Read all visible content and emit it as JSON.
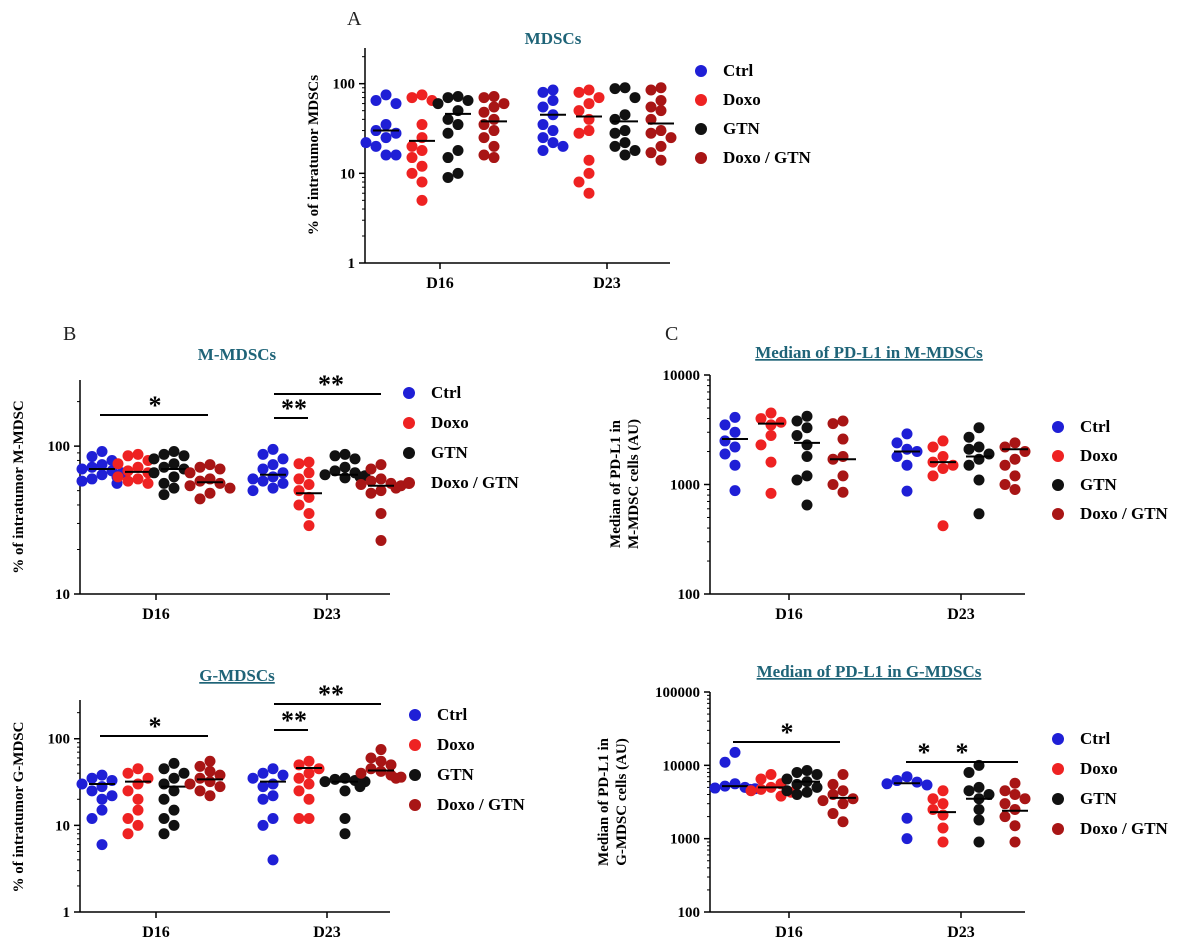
{
  "colors": {
    "Ctrl": "#1f1fd6",
    "Doxo": "#ee2222",
    "GTN": "#111111",
    "Doxo / GTN": "#a81515",
    "title": "#1f6478",
    "axis": "#000000"
  },
  "panel_letters": {
    "A": "A",
    "B": "B",
    "C": "C"
  },
  "chart_data": [
    {
      "id": "A",
      "type": "scatter",
      "title": "MDSCs",
      "title_underline": false,
      "ylabel": "% of intratumor MDSCs",
      "xlabel": "",
      "yscale": "log",
      "ylim": [
        1,
        250
      ],
      "yticks": [
        1,
        10,
        100
      ],
      "ytick_labels": [
        "1",
        "10",
        "100"
      ],
      "categories": [
        "D16",
        "D23"
      ],
      "legend": [
        "Ctrl",
        "Doxo",
        "GTN",
        "Doxo / GTN"
      ],
      "legend_position": "right",
      "series": [
        {
          "name": "Ctrl",
          "values": [
            [
              75,
              65,
              60,
              35,
              30,
              28,
              25,
              20,
              16,
              16,
              22
            ],
            [
              85,
              80,
              65,
              55,
              45,
              35,
              30,
              25,
              22,
              18,
              20
            ]
          ],
          "means": [
            30,
            45
          ]
        },
        {
          "name": "Doxo",
          "values": [
            [
              75,
              70,
              65,
              35,
              25,
              20,
              18,
              15,
              12,
              10,
              8,
              5
            ],
            [
              85,
              80,
              70,
              60,
              50,
              40,
              30,
              28,
              14,
              10,
              8,
              6
            ]
          ],
          "means": [
            23,
            43
          ]
        },
        {
          "name": "GTN",
          "values": [
            [
              72,
              70,
              65,
              60,
              50,
              40,
              35,
              28,
              18,
              15,
              10,
              9
            ],
            [
              90,
              88,
              70,
              45,
              40,
              30,
              28,
              22,
              20,
              18,
              16
            ]
          ],
          "means": [
            46,
            38
          ]
        },
        {
          "name": "Doxo / GTN",
          "values": [
            [
              72,
              70,
              60,
              55,
              48,
              40,
              35,
              30,
              25,
              20,
              16,
              15
            ],
            [
              90,
              85,
              65,
              55,
              50,
              40,
              30,
              28,
              25,
              20,
              17,
              14
            ]
          ],
          "means": [
            38,
            36
          ]
        }
      ],
      "significance": []
    },
    {
      "id": "B1",
      "type": "scatter",
      "title": "M-MDSCs",
      "title_underline": false,
      "ylabel": "% of intratumor M-MDSC",
      "xlabel": "",
      "yscale": "log",
      "ylim": [
        10,
        280
      ],
      "yticks": [
        10,
        100
      ],
      "ytick_labels": [
        "10",
        "100"
      ],
      "categories": [
        "D16",
        "D23"
      ],
      "legend": [
        "Ctrl",
        "Doxo",
        "GTN",
        "Doxo / GTN"
      ],
      "legend_position": "right",
      "series": [
        {
          "name": "Ctrl",
          "values": [
            [
              92,
              85,
              80,
              75,
              72,
              70,
              68,
              66,
              64,
              62,
              60,
              58,
              56
            ],
            [
              95,
              88,
              82,
              75,
              70,
              66,
              62,
              60,
              58,
              56,
              52,
              50
            ]
          ],
          "means": [
            70,
            64
          ]
        },
        {
          "name": "Doxo",
          "values": [
            [
              88,
              86,
              80,
              76,
              72,
              68,
              66,
              62,
              60,
              58,
              56
            ],
            [
              78,
              76,
              66,
              60,
              55,
              50,
              45,
              40,
              35,
              29
            ]
          ],
          "means": [
            67,
            48
          ]
        },
        {
          "name": "GTN",
          "values": [
            [
              92,
              88,
              86,
              82,
              76,
              72,
              70,
              66,
              62,
              56,
              52,
              47
            ],
            [
              88,
              86,
              82,
              72,
              68,
              66,
              64,
              63,
              62,
              61
            ]
          ],
          "means": [
            70,
            64
          ]
        },
        {
          "name": "Doxo / GTN",
          "values": [
            [
              75,
              72,
              70,
              66,
              60,
              58,
              56,
              54,
              52,
              48,
              44
            ],
            [
              75,
              70,
              60,
              58,
              56,
              55,
              54,
              52,
              50,
              48,
              35,
              23
            ]
          ],
          "means": [
            57,
            54
          ]
        }
      ],
      "significance": [
        {
          "label": "*",
          "from": "D16 Ctrl",
          "to": "D16 Doxo / GTN"
        },
        {
          "label": "**",
          "from": "D23 Ctrl",
          "to": "D23 Doxo"
        },
        {
          "label": "**",
          "from": "D23 Ctrl",
          "to": "D23 Doxo / GTN"
        }
      ]
    },
    {
      "id": "B2",
      "type": "scatter",
      "title": "G-MDSCs",
      "title_underline": true,
      "ylabel": "% of intratumor G-MDSC",
      "xlabel": "",
      "yscale": "log",
      "ylim": [
        1,
        280
      ],
      "yticks": [
        1,
        10,
        100
      ],
      "ytick_labels": [
        "1",
        "10",
        "100"
      ],
      "categories": [
        "D16",
        "D23"
      ],
      "legend": [
        "Ctrl",
        "Doxo",
        "GTN",
        "Doxo / GTN"
      ],
      "legend_position": "right",
      "series": [
        {
          "name": "Ctrl",
          "values": [
            [
              38,
              35,
              33,
              30,
              28,
              25,
              22,
              20,
              15,
              12,
              6
            ],
            [
              45,
              40,
              38,
              35,
              30,
              28,
              22,
              20,
              12,
              10,
              4
            ]
          ],
          "means": [
            30,
            32
          ]
        },
        {
          "name": "Doxo",
          "values": [
            [
              45,
              40,
              35,
              30,
              25,
              20,
              15,
              12,
              10,
              8
            ],
            [
              55,
              50,
              45,
              40,
              35,
              30,
              25,
              20,
              12,
              12
            ]
          ],
          "means": [
            32,
            46
          ]
        },
        {
          "name": "GTN",
          "values": [
            [
              52,
              45,
              40,
              35,
              30,
              25,
              20,
              15,
              12,
              10,
              8
            ],
            [
              35,
              34,
              33,
              32,
              32,
              31,
              30,
              29,
              28,
              25,
              12,
              8
            ]
          ],
          "means": [
            28,
            32
          ]
        },
        {
          "name": "Doxo / GTN",
          "values": [
            [
              55,
              48,
              42,
              38,
              35,
              32,
              30,
              28,
              25,
              22
            ],
            [
              75,
              60,
              55,
              50,
              45,
              42,
              40,
              38,
              36,
              35
            ]
          ],
          "means": [
            34,
            43
          ]
        }
      ],
      "significance": [
        {
          "label": "*",
          "from": "D16 Ctrl",
          "to": "D16 Doxo / GTN"
        },
        {
          "label": "**",
          "from": "D23 Ctrl",
          "to": "D23 Doxo"
        },
        {
          "label": "**",
          "from": "D23 Ctrl",
          "to": "D23 Doxo / GTN"
        }
      ]
    },
    {
      "id": "C1",
      "type": "scatter",
      "title": "Median of PD-L1 in M-MDSCs",
      "title_underline": true,
      "ylabel": [
        "Median of PD-L1 in",
        "M-MDSC cells (AU)"
      ],
      "xlabel": "",
      "yscale": "log",
      "ylim": [
        100,
        10000
      ],
      "yticks": [
        100,
        1000,
        10000
      ],
      "ytick_labels": [
        "100",
        "1000",
        "10000"
      ],
      "categories": [
        "D16",
        "D23"
      ],
      "legend": [
        "Ctrl",
        "Doxo",
        "GTN",
        "Doxo / GTN"
      ],
      "legend_position": "right",
      "series": [
        {
          "name": "Ctrl",
          "values": [
            [
              4100,
              3500,
              3000,
              2500,
              2200,
              1900,
              1500,
              880
            ],
            [
              2900,
              2400,
              2100,
              2000,
              1800,
              1500,
              870
            ]
          ],
          "means": [
            2600,
            2000
          ]
        },
        {
          "name": "Doxo",
          "values": [
            [
              4500,
              4000,
              3700,
              3500,
              2800,
              2300,
              1600,
              830
            ],
            [
              2500,
              2200,
              1800,
              1600,
              1500,
              1400,
              1200,
              420
            ]
          ],
          "means": [
            3600,
            1600
          ]
        },
        {
          "name": "GTN",
          "values": [
            [
              4200,
              3800,
              3300,
              2800,
              2300,
              1800,
              1200,
              1100,
              650
            ],
            [
              3300,
              2700,
              2200,
              2100,
              1900,
              1700,
              1500,
              1100,
              540
            ]
          ],
          "means": [
            2400,
            1800
          ]
        },
        {
          "name": "Doxo / GTN",
          "values": [
            [
              3800,
              3600,
              2600,
              1800,
              1700,
              1200,
              1000,
              850
            ],
            [
              2400,
              2200,
              2000,
              1700,
              1500,
              1200,
              1000,
              900
            ]
          ],
          "means": [
            1700,
            2100
          ]
        }
      ],
      "significance": []
    },
    {
      "id": "C2",
      "type": "scatter",
      "title": "Median of PD-L1 in G-MDSCs",
      "title_underline": true,
      "ylabel": [
        "Median of PD-L1 in",
        "G-MDSC cells (AU)"
      ],
      "xlabel": "",
      "yscale": "log",
      "ylim": [
        100,
        100000
      ],
      "yticks": [
        100,
        1000,
        10000,
        100000
      ],
      "ytick_labels": [
        "100",
        "1000",
        "10000",
        "100000"
      ],
      "categories": [
        "D16",
        "D23"
      ],
      "legend": [
        "Ctrl",
        "Doxo",
        "GTN",
        "Doxo / GTN"
      ],
      "legend_position": "right",
      "series": [
        {
          "name": "Ctrl",
          "values": [
            [
              15000,
              11000,
              5600,
              5200,
              5000,
              4900,
              4800,
              4700
            ],
            [
              7000,
              6200,
              5900,
              5600,
              5400,
              1900,
              1000
            ]
          ],
          "means": [
            5200,
            5700
          ]
        },
        {
          "name": "Doxo",
          "values": [
            [
              7500,
              6500,
              5600,
              5000,
              4700,
              4500,
              4300,
              3800
            ],
            [
              4500,
              3500,
              3000,
              2500,
              2100,
              1400,
              900
            ]
          ],
          "means": [
            5000,
            2300
          ]
        },
        {
          "name": "GTN",
          "values": [
            [
              8500,
              8000,
              7500,
              6500,
              6000,
              5500,
              5000,
              4500,
              4300,
              4000
            ],
            [
              10000,
              8000,
              5000,
              4500,
              4000,
              3500,
              2500,
              1800,
              900
            ]
          ],
          "means": [
            6000,
            3500
          ]
        },
        {
          "name": "Doxo / GTN",
          "values": [
            [
              7500,
              5500,
              4500,
              4000,
              3500,
              3300,
              3000,
              2200,
              1700
            ],
            [
              5700,
              4500,
              4000,
              3500,
              3000,
              2500,
              2000,
              1500,
              900
            ]
          ],
          "means": [
            3600,
            2400
          ]
        }
      ],
      "significance": [
        {
          "label": "*",
          "from": "D16 Ctrl",
          "to": "D16 Doxo / GTN"
        },
        {
          "label": "*",
          "from": "D23 Ctrl",
          "to": "D23 Doxo"
        },
        {
          "label": "*",
          "from": "D23 Ctrl",
          "to": "D23 Doxo / GTN"
        }
      ]
    }
  ]
}
